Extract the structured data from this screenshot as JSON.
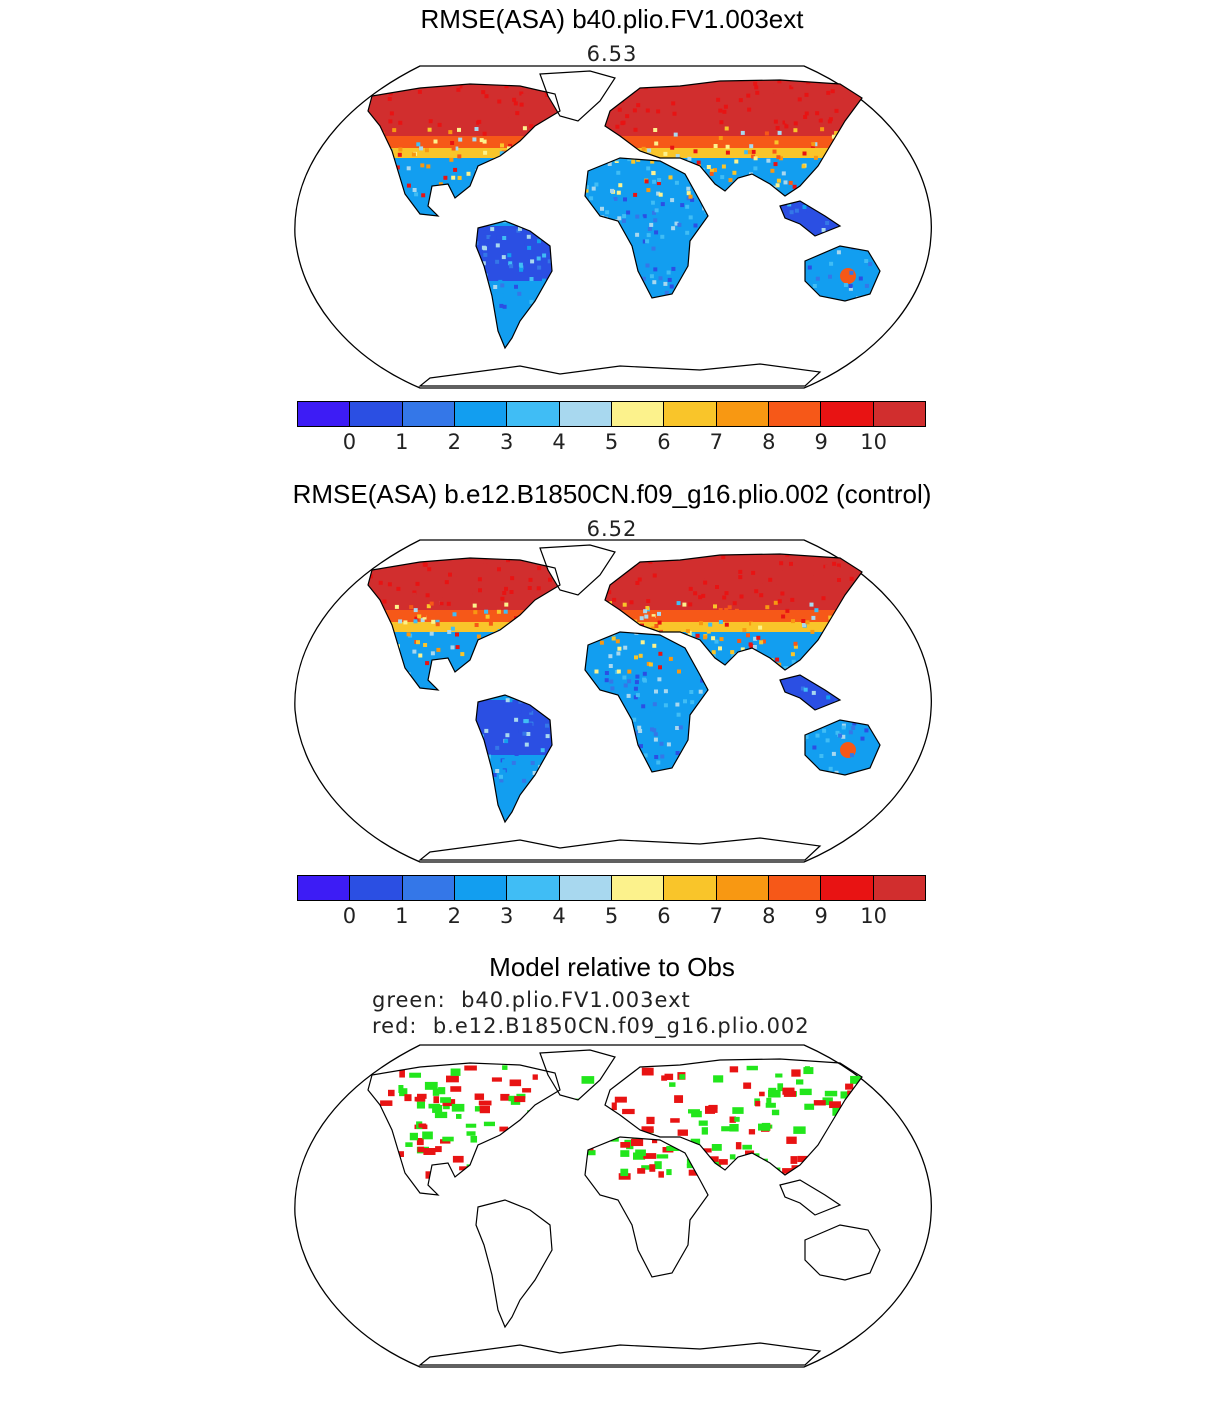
{
  "panels": [
    {
      "title": "RMSE(ASA) b40.plio.FV1.003ext",
      "value": "6.53"
    },
    {
      "title": "RMSE(ASA) b.e12.B1850CN.f09_g16.plio.002 (control)",
      "value": "6.52"
    }
  ],
  "colorbar": {
    "colors": [
      "#3d1cf5",
      "#2b4fe3",
      "#3477e8",
      "#129ef0",
      "#40bdf5",
      "#a8d8ef",
      "#fcf28c",
      "#f9c52a",
      "#f89812",
      "#f65818",
      "#e81313",
      "#d12e2e"
    ],
    "tick_labels": [
      "0",
      "1",
      "2",
      "3",
      "4",
      "5",
      "6",
      "7",
      "8",
      "9",
      "10"
    ]
  },
  "comparison": {
    "title": "Model relative to Obs",
    "legend_green": "green:  b40.plio.FV1.003ext",
    "legend_red": "red:  b.e12.B1850CN.f09_g16.plio.002",
    "green_color": "#22e61c",
    "red_color": "#e81313"
  }
}
